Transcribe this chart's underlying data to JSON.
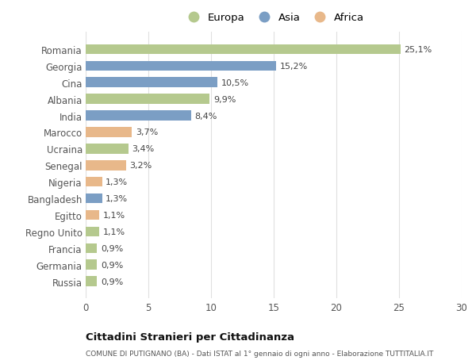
{
  "countries": [
    "Romania",
    "Georgia",
    "Cina",
    "Albania",
    "India",
    "Marocco",
    "Ucraina",
    "Senegal",
    "Nigeria",
    "Bangladesh",
    "Egitto",
    "Regno Unito",
    "Francia",
    "Germania",
    "Russia"
  ],
  "values": [
    25.1,
    15.2,
    10.5,
    9.9,
    8.4,
    3.7,
    3.4,
    3.2,
    1.3,
    1.3,
    1.1,
    1.1,
    0.9,
    0.9,
    0.9
  ],
  "labels": [
    "25,1%",
    "15,2%",
    "10,5%",
    "9,9%",
    "8,4%",
    "3,7%",
    "3,4%",
    "3,2%",
    "1,3%",
    "1,3%",
    "1,1%",
    "1,1%",
    "0,9%",
    "0,9%",
    "0,9%"
  ],
  "continents": [
    "Europa",
    "Asia",
    "Asia",
    "Europa",
    "Asia",
    "Africa",
    "Europa",
    "Africa",
    "Africa",
    "Asia",
    "Africa",
    "Europa",
    "Europa",
    "Europa",
    "Europa"
  ],
  "colors": {
    "Europa": "#b5c98e",
    "Asia": "#7b9ec4",
    "Africa": "#e8b88a"
  },
  "legend_order": [
    "Europa",
    "Asia",
    "Africa"
  ],
  "xlim": [
    0,
    30
  ],
  "xticks": [
    0,
    5,
    10,
    15,
    20,
    25,
    30
  ],
  "title_bold": "Cittadini Stranieri per Cittadinanza",
  "subtitle": "COMUNE DI PUTIGNANO (BA) - Dati ISTAT al 1° gennaio di ogni anno - Elaborazione TUTTITALIA.IT",
  "background_color": "#ffffff",
  "grid_color": "#e0e0e0",
  "bar_height": 0.6
}
